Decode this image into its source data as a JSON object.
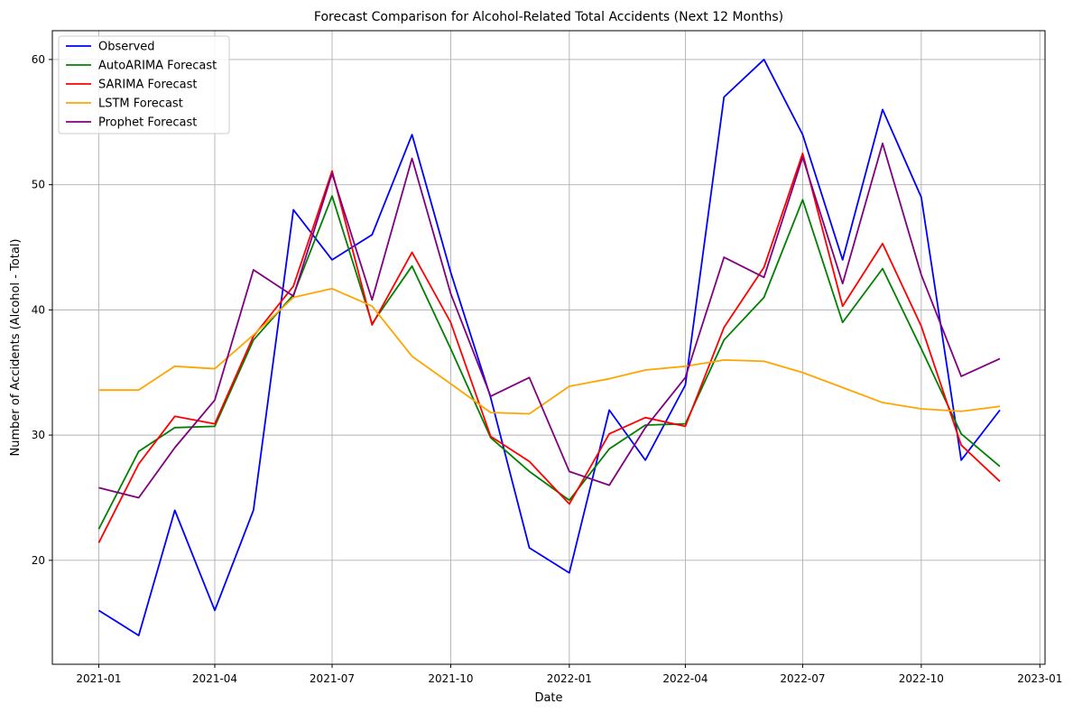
{
  "chart_data": {
    "type": "line",
    "title": "Forecast Comparison for Alcohol-Related Total Accidents (Next 12 Months)",
    "xlabel": "Date",
    "ylabel": "Number of Accidents (Alcohol - Total)",
    "x_tick_labels": [
      "2021-01",
      "2021-04",
      "2021-07",
      "2021-10",
      "2022-01",
      "2022-04",
      "2022-07",
      "2022-10",
      "2023-01"
    ],
    "y_tick_labels": [
      "20",
      "30",
      "40",
      "50",
      "60"
    ],
    "y_ticks": [
      20,
      30,
      40,
      50,
      60
    ],
    "ylim": [
      11.7,
      62.3
    ],
    "xlim": [
      "2020-11-26",
      "2023-01-05"
    ],
    "grid": true,
    "legend_position": "upper left",
    "x": [
      "2021-01-01",
      "2021-02-01",
      "2021-03-01",
      "2021-04-01",
      "2021-05-01",
      "2021-06-01",
      "2021-07-01",
      "2021-08-01",
      "2021-09-01",
      "2021-10-01",
      "2021-11-01",
      "2021-12-01",
      "2022-01-01",
      "2022-02-01",
      "2022-03-01",
      "2022-04-01",
      "2022-05-01",
      "2022-06-01",
      "2022-07-01",
      "2022-08-01",
      "2022-09-01",
      "2022-10-01",
      "2022-11-01",
      "2022-12-01"
    ],
    "series": [
      {
        "name": "Observed",
        "color": "#0000ff",
        "values": [
          16,
          14,
          24,
          16,
          24,
          48,
          44,
          46,
          54,
          43,
          33,
          21,
          19,
          32,
          28,
          34,
          57,
          60,
          54,
          44,
          56,
          49,
          28,
          32
        ]
      },
      {
        "name": "AutoARIMA Forecast",
        "color": "#008000",
        "values": [
          22.5,
          28.7,
          30.6,
          30.7,
          37.6,
          41.2,
          49.1,
          38.9,
          43.5,
          36.9,
          29.8,
          27.1,
          24.8,
          28.9,
          30.8,
          30.9,
          37.6,
          41.0,
          48.8,
          39.0,
          43.3,
          36.9,
          30.1,
          27.5
        ]
      },
      {
        "name": "SARIMA Forecast",
        "color": "#ff0000",
        "values": [
          21.4,
          27.7,
          31.5,
          30.9,
          37.9,
          41.9,
          51.1,
          38.8,
          44.6,
          39.0,
          29.9,
          27.9,
          24.5,
          30.1,
          31.4,
          30.7,
          38.6,
          43.4,
          52.5,
          40.3,
          45.3,
          38.7,
          29.2,
          26.3
        ]
      },
      {
        "name": "LSTM Forecast",
        "color": "#ffa500",
        "values": [
          33.6,
          33.6,
          35.5,
          35.3,
          38.0,
          41.0,
          41.7,
          40.3,
          36.3,
          34.1,
          31.8,
          31.7,
          33.9,
          34.5,
          35.2,
          35.5,
          36.0,
          35.9,
          35.0,
          33.8,
          32.6,
          32.1,
          31.9,
          32.3
        ]
      },
      {
        "name": "Prophet Forecast",
        "color": "#800080",
        "values": [
          25.8,
          25.0,
          29.0,
          32.8,
          43.2,
          41.1,
          50.9,
          40.8,
          52.1,
          41.3,
          33.1,
          34.6,
          27.1,
          26.0,
          30.6,
          34.6,
          44.2,
          42.6,
          52.2,
          42.1,
          53.3,
          42.8,
          34.7,
          36.1
        ]
      }
    ]
  }
}
